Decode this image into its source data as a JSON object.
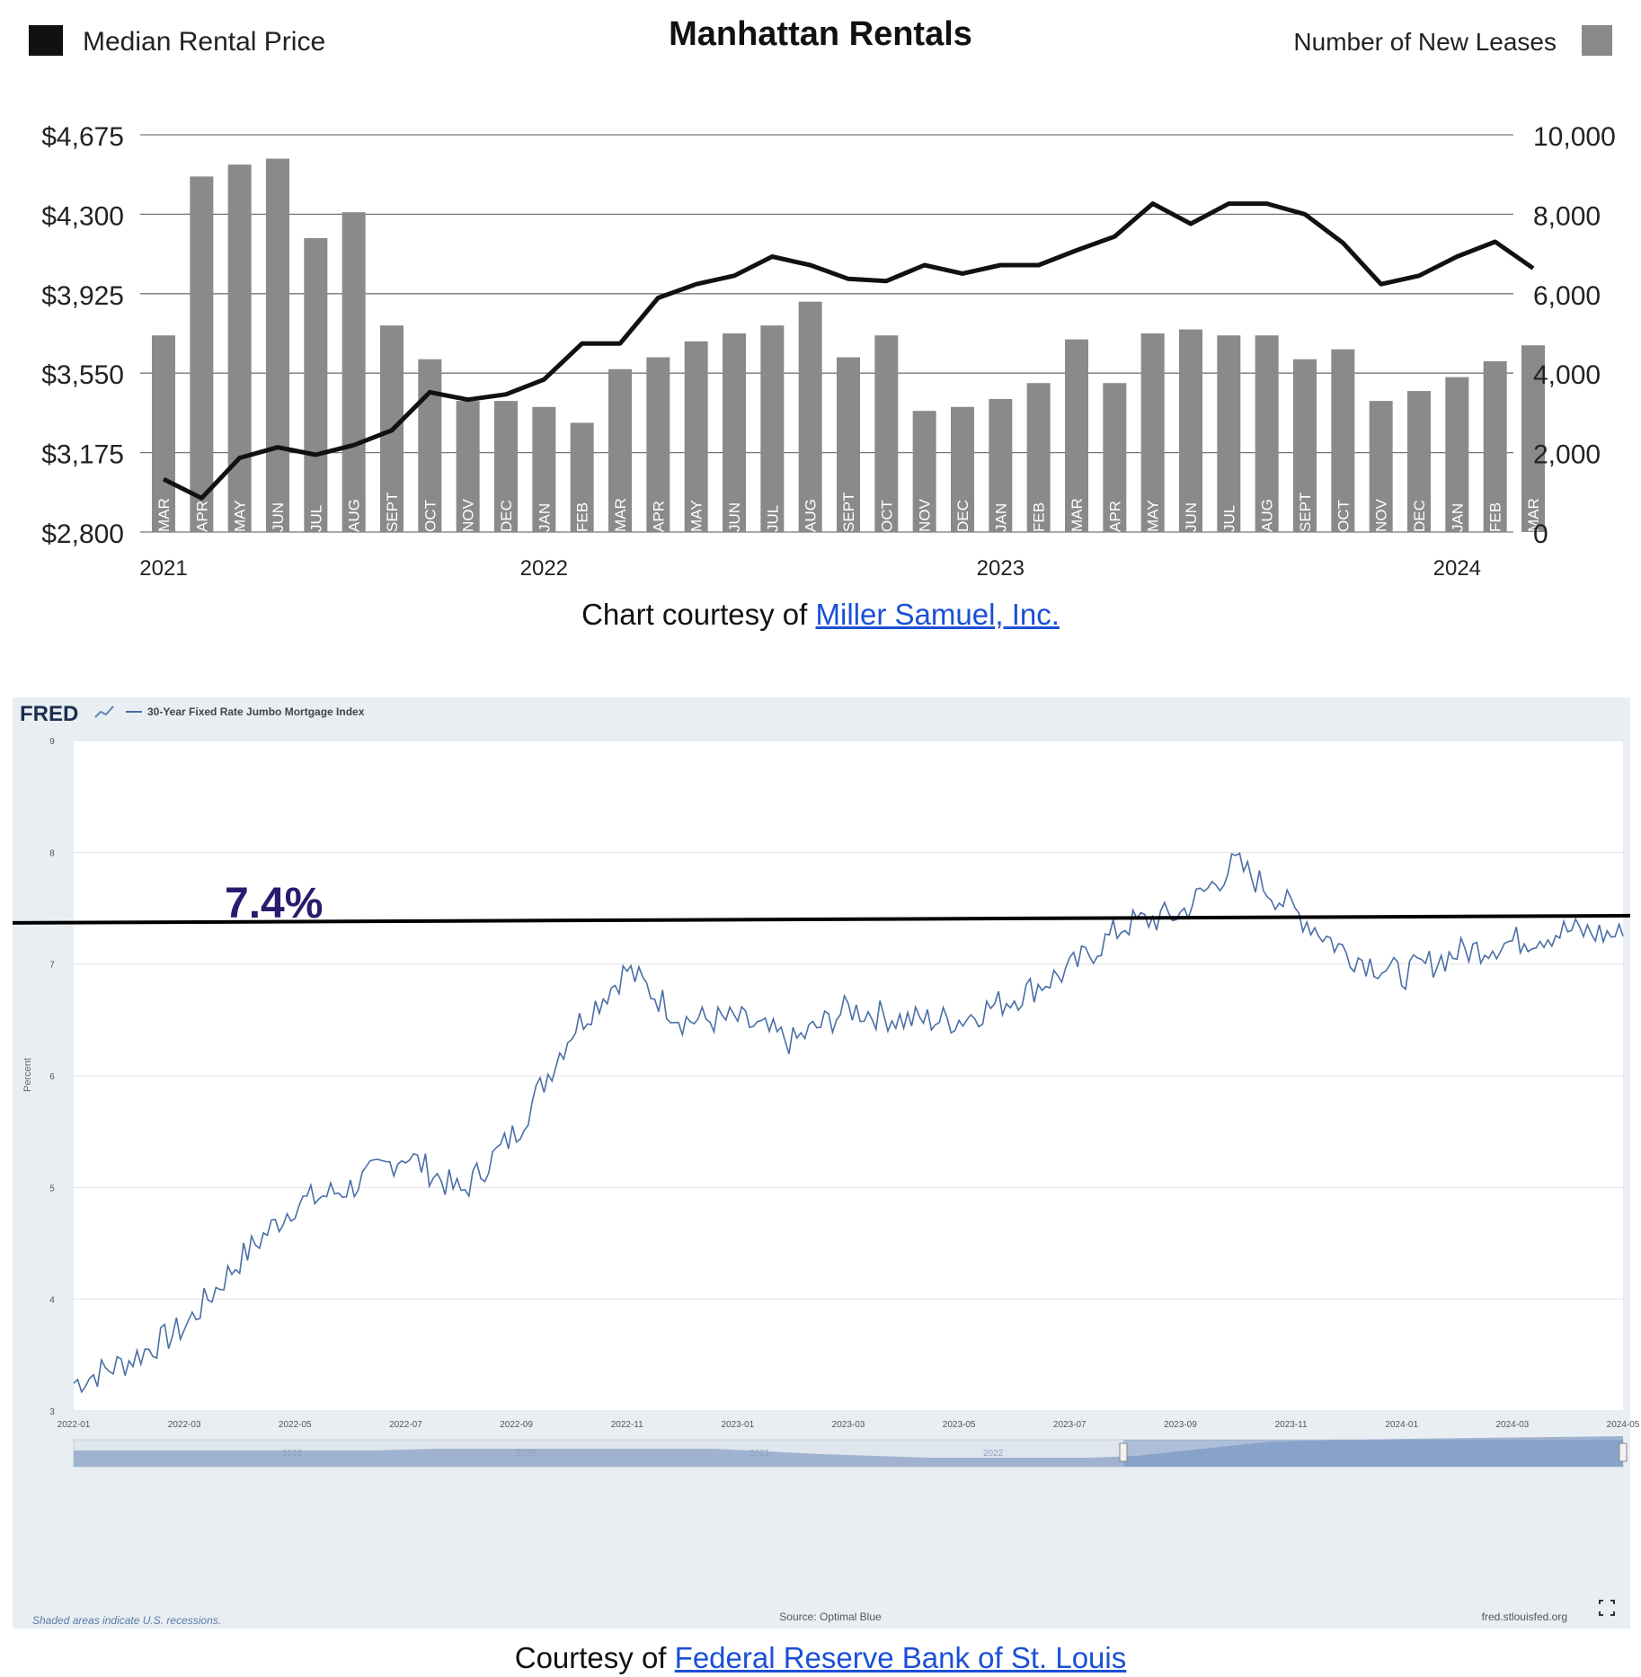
{
  "colors": {
    "bar": "#888b8a",
    "price_line": "#111111",
    "fred_line": "#4a6fa5",
    "fred_bg": "#e9eef3",
    "reference_line": "#000000",
    "reference_label": "#2b1a6e",
    "link": "#1a4fd6"
  },
  "top": {
    "legend_left": "Median Rental Price",
    "legend_right": "Number of New Leases",
    "caption_prefix": "Chart courtesy of ",
    "caption_link": "Miller Samuel, Inc."
  },
  "bottom": {
    "fred_logo": "FRED",
    "shaded_note": "Shaded areas indicate U.S. recessions.",
    "source": "Source: Optimal Blue",
    "site": "fred.stlouisfed.org",
    "caption_prefix": "Courtesy of ",
    "caption_link": "Federal Reserve Bank of St. Louis",
    "navigator_labels": [
      "2019",
      "2020",
      "2021",
      "2022"
    ]
  },
  "chart_data": [
    {
      "type": "bar",
      "title": "Manhattan Rentals",
      "categories": [
        "MAR",
        "APR",
        "MAY",
        "JUN",
        "JUL",
        "AUG",
        "SEPT",
        "OCT",
        "NOV",
        "DEC",
        "JAN",
        "FEB",
        "MAR",
        "APR",
        "MAY",
        "JUN",
        "JUL",
        "AUG",
        "SEPT",
        "OCT",
        "NOV",
        "DEC",
        "JAN",
        "FEB",
        "MAR",
        "APR",
        "MAY",
        "JUN",
        "JUL",
        "AUG",
        "SEPT",
        "OCT",
        "NOV",
        "DEC",
        "JAN",
        "FEB",
        "MAR"
      ],
      "year_labels": [
        {
          "label": "2021",
          "index": 0
        },
        {
          "label": "2022",
          "index": 10
        },
        {
          "label": "2023",
          "index": 22
        },
        {
          "label": "2024",
          "index": 34
        }
      ],
      "series": [
        {
          "name": "Number of New Leases",
          "type": "bar",
          "axis": "right",
          "values": [
            4950,
            8950,
            9250,
            9400,
            7400,
            8050,
            5200,
            4350,
            3300,
            3300,
            3150,
            2750,
            4100,
            4400,
            4800,
            5000,
            5200,
            5800,
            4400,
            4950,
            3050,
            3150,
            3350,
            3750,
            4850,
            3750,
            5000,
            5100,
            4950,
            4950,
            4350,
            4600,
            3300,
            3550,
            3900,
            4300,
            4700
          ]
        },
        {
          "name": "Median Rental Price",
          "type": "line",
          "axis": "left",
          "values": [
            3050,
            2960,
            3150,
            3200,
            3165,
            3210,
            3280,
            3460,
            3425,
            3450,
            3520,
            3690,
            3690,
            3905,
            3970,
            4010,
            4100,
            4060,
            3995,
            3985,
            4060,
            4020,
            4060,
            4060,
            4130,
            4195,
            4350,
            4255,
            4350,
            4350,
            4300,
            4165,
            3970,
            4010,
            4100,
            4170,
            4045
          ]
        }
      ],
      "y_left": {
        "ticks": [
          "$4,675",
          "$4,300",
          "$3,925",
          "$3,550",
          "$3,175",
          "$2,800"
        ],
        "min": 2800,
        "max": 4675
      },
      "y_right": {
        "ticks": [
          "10,000",
          "8,000",
          "6,000",
          "4,000",
          "2,000",
          "0"
        ],
        "min": 0,
        "max": 10000
      },
      "grid": true,
      "legend": "top"
    },
    {
      "type": "line",
      "series": [
        {
          "name": "30-Year Fixed Rate Jumbo Mortgage Index",
          "x": [
            "2022-01",
            "2022-02",
            "2022-03",
            "2022-04",
            "2022-05",
            "2022-06",
            "2022-07",
            "2022-08",
            "2022-09",
            "2022-10",
            "2022-11",
            "2022-12",
            "2023-01",
            "2023-02",
            "2023-03",
            "2023-04",
            "2023-05",
            "2023-06",
            "2023-07",
            "2023-08",
            "2023-09",
            "2023-10",
            "2023-11",
            "2023-12",
            "2024-01",
            "2024-02",
            "2024-03",
            "2024-04",
            "2024-05"
          ],
          "values": [
            3.25,
            3.45,
            3.75,
            4.35,
            4.85,
            5.0,
            5.3,
            4.95,
            5.5,
            6.4,
            6.95,
            6.5,
            6.5,
            6.3,
            6.6,
            6.5,
            6.5,
            6.7,
            6.95,
            7.35,
            7.45,
            7.9,
            7.5,
            7.1,
            6.9,
            7.1,
            7.2,
            7.3,
            7.25
          ]
        }
      ],
      "x_ticks": [
        "2022-01",
        "2022-03",
        "2022-05",
        "2022-07",
        "2022-09",
        "2022-11",
        "2023-01",
        "2023-03",
        "2023-05",
        "2023-07",
        "2023-09",
        "2023-11",
        "2024-01",
        "2024-03",
        "2024-05"
      ],
      "y_ticks": [
        "9",
        "8",
        "7",
        "6",
        "5",
        "4",
        "3"
      ],
      "ylabel": "Percent",
      "ylim": [
        3,
        9
      ],
      "reference_line": {
        "value": 7.4,
        "label": "7.4%"
      },
      "grid": true,
      "legend": "top-left"
    }
  ]
}
